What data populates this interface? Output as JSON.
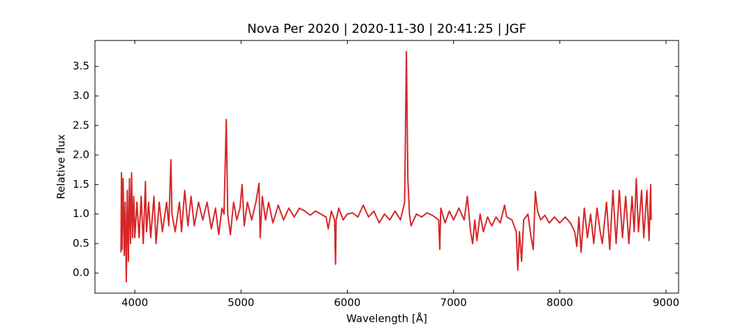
{
  "chart_data": {
    "type": "line",
    "title": "Nova Per 2020 | 2020-11-30 | 20:41:25 | JGF",
    "xlabel": "Wavelength [Å]",
    "ylabel": "Relative flux",
    "color": "#d62728",
    "xlim": [
      3625,
      9118
    ],
    "ylim": [
      -0.34,
      3.94
    ],
    "xticks": [
      4000,
      5000,
      6000,
      7000,
      8000,
      9000
    ],
    "yticks": [
      {
        "value": 0,
        "label": "0.0"
      },
      0.5,
      {
        "value": 1,
        "label": "1.0"
      },
      1.5,
      {
        "value": 2,
        "label": "2.0"
      },
      2.5,
      {
        "value": 3,
        "label": "3.0"
      },
      3.5
    ],
    "x": [
      3870,
      3875,
      3880,
      3890,
      3900,
      3910,
      3920,
      3930,
      3940,
      3950,
      3960,
      3970,
      3980,
      3990,
      4000,
      4020,
      4040,
      4060,
      4080,
      4100,
      4110,
      4130,
      4150,
      4180,
      4200,
      4230,
      4260,
      4300,
      4320,
      4340,
      4350,
      4380,
      4420,
      4440,
      4470,
      4500,
      4530,
      4560,
      4600,
      4640,
      4680,
      4720,
      4760,
      4790,
      4820,
      4840,
      4861,
      4875,
      4900,
      4930,
      4960,
      4990,
      5010,
      5030,
      5060,
      5100,
      5140,
      5169,
      5180,
      5200,
      5230,
      5260,
      5300,
      5350,
      5400,
      5450,
      5500,
      5550,
      5600,
      5650,
      5700,
      5750,
      5800,
      5820,
      5850,
      5880,
      5889,
      5895,
      5920,
      5960,
      6000,
      6050,
      6100,
      6150,
      6200,
      6250,
      6300,
      6350,
      6400,
      6450,
      6500,
      6540,
      6556,
      6570,
      6585,
      6600,
      6650,
      6700,
      6750,
      6800,
      6860,
      6870,
      6880,
      6920,
      6960,
      7000,
      7050,
      7100,
      7130,
      7160,
      7180,
      7200,
      7220,
      7250,
      7280,
      7320,
      7360,
      7400,
      7440,
      7480,
      7500,
      7550,
      7590,
      7605,
      7620,
      7640,
      7660,
      7700,
      7730,
      7750,
      7770,
      7790,
      7820,
      7860,
      7900,
      7950,
      8000,
      8050,
      8100,
      8140,
      8160,
      8180,
      8200,
      8230,
      8260,
      8290,
      8320,
      8350,
      8380,
      8400,
      8440,
      8470,
      8500,
      8530,
      8560,
      8590,
      8620,
      8650,
      8680,
      8700,
      8720,
      8740,
      8770,
      8790,
      8820,
      8840,
      8855,
      8860
    ],
    "values": [
      0.35,
      1.7,
      0.4,
      1.6,
      0.3,
      1.2,
      -0.15,
      1.4,
      0.2,
      1.6,
      0.5,
      1.7,
      0.6,
      1.3,
      0.6,
      1.2,
      0.6,
      1.3,
      0.5,
      1.55,
      0.7,
      1.2,
      0.6,
      1.3,
      0.5,
      1.2,
      0.7,
      1.2,
      0.8,
      1.92,
      1.0,
      0.7,
      1.2,
      0.7,
      1.4,
      0.8,
      1.3,
      0.8,
      1.2,
      0.9,
      1.2,
      0.75,
      1.1,
      0.65,
      1.1,
      1.0,
      2.6,
      1.0,
      0.65,
      1.2,
      0.9,
      1.1,
      1.5,
      0.8,
      1.2,
      0.9,
      1.2,
      1.52,
      0.6,
      1.3,
      0.9,
      1.2,
      0.85,
      1.15,
      0.9,
      1.1,
      0.95,
      1.1,
      1.05,
      0.98,
      1.05,
      1.0,
      0.95,
      0.75,
      1.05,
      0.9,
      0.15,
      0.9,
      1.1,
      0.9,
      1.0,
      1.02,
      0.95,
      1.15,
      0.95,
      1.05,
      0.85,
      1.0,
      0.9,
      1.05,
      0.9,
      1.2,
      3.75,
      1.6,
      1.0,
      0.8,
      1.0,
      0.95,
      1.02,
      0.98,
      0.9,
      0.4,
      1.1,
      0.85,
      1.05,
      0.9,
      1.1,
      0.9,
      1.3,
      0.7,
      0.5,
      0.9,
      0.55,
      1.0,
      0.7,
      0.95,
      0.8,
      0.95,
      0.85,
      1.15,
      0.95,
      0.9,
      0.7,
      0.05,
      0.7,
      0.2,
      0.9,
      1.0,
      0.6,
      0.4,
      1.38,
      1.05,
      0.9,
      0.98,
      0.85,
      0.95,
      0.85,
      0.95,
      0.85,
      0.7,
      0.45,
      0.95,
      0.35,
      1.1,
      0.6,
      1.0,
      0.5,
      1.1,
      0.7,
      0.5,
      1.2,
      0.4,
      1.4,
      0.5,
      1.4,
      0.6,
      1.3,
      0.5,
      1.3,
      0.7,
      1.6,
      0.7,
      1.4,
      0.6,
      1.4,
      0.55,
      1.5,
      0.9
    ]
  }
}
